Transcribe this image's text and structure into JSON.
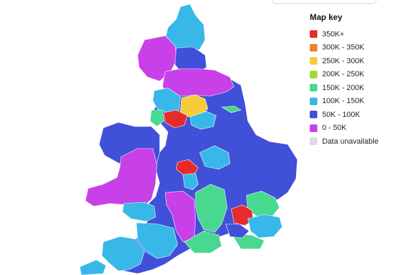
{
  "map": {
    "region": "England and Wales",
    "legend": {
      "title": "Map key",
      "items": [
        {
          "label": "350K+",
          "color": "#e82a2a"
        },
        {
          "label": "300K - 350K",
          "color": "#f08030"
        },
        {
          "label": "250K - 300K",
          "color": "#f8cc38"
        },
        {
          "label": "200K - 250K",
          "color": "#a0d838"
        },
        {
          "label": "150K - 200K",
          "color": "#48d890"
        },
        {
          "label": "100K - 150K",
          "color": "#38b8e8"
        },
        {
          "label": "50K - 100K",
          "color": "#4050d8"
        },
        {
          "label": "0 - 50K",
          "color": "#c840e8"
        },
        {
          "label": "Data unavailable",
          "color": "#dcdcdc"
        }
      ]
    },
    "background_color": "#ffffff"
  }
}
